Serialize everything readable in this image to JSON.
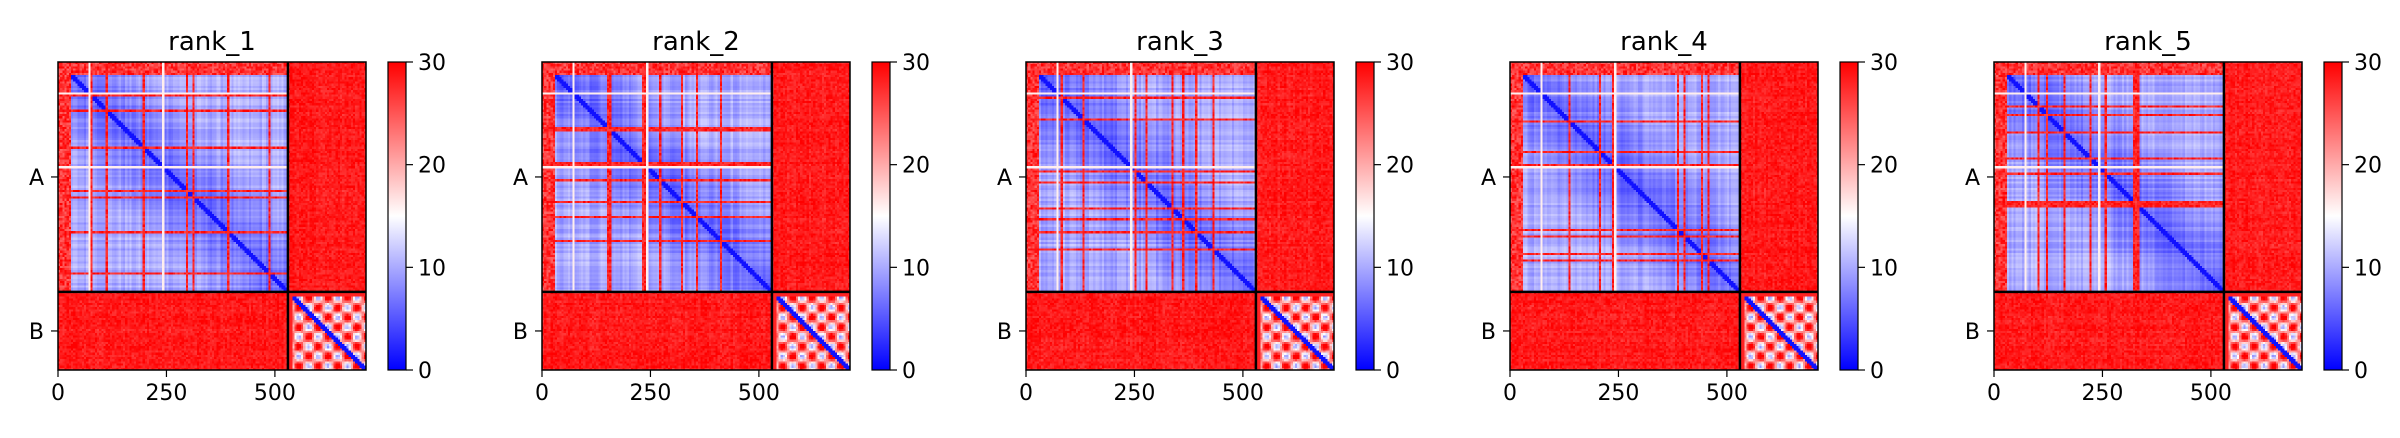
{
  "chart_data": [
    {
      "type": "heatmap",
      "title": "rank_1",
      "row_labels": [
        "A",
        "B"
      ],
      "x_ticks": [
        0,
        250,
        500
      ],
      "chain_split": 530,
      "length": 710,
      "colorbar": {
        "min": 0,
        "max": 30,
        "ticks": [
          0,
          10,
          20,
          30
        ]
      },
      "colormap": [
        "#0000ff",
        "#ffffff",
        "#ff0000"
      ]
    },
    {
      "type": "heatmap",
      "title": "rank_2",
      "row_labels": [
        "A",
        "B"
      ],
      "x_ticks": [
        0,
        250,
        500
      ],
      "chain_split": 530,
      "length": 710,
      "colorbar": {
        "min": 0,
        "max": 30,
        "ticks": [
          0,
          10,
          20,
          30
        ]
      },
      "colormap": [
        "#0000ff",
        "#ffffff",
        "#ff0000"
      ]
    },
    {
      "type": "heatmap",
      "title": "rank_3",
      "row_labels": [
        "A",
        "B"
      ],
      "x_ticks": [
        0,
        250,
        500
      ],
      "chain_split": 530,
      "length": 710,
      "colorbar": {
        "min": 0,
        "max": 30,
        "ticks": [
          0,
          10,
          20,
          30
        ]
      },
      "colormap": [
        "#0000ff",
        "#ffffff",
        "#ff0000"
      ]
    },
    {
      "type": "heatmap",
      "title": "rank_4",
      "row_labels": [
        "A",
        "B"
      ],
      "x_ticks": [
        0,
        250,
        500
      ],
      "chain_split": 530,
      "length": 710,
      "colorbar": {
        "min": 0,
        "max": 30,
        "ticks": [
          0,
          10,
          20,
          30
        ]
      },
      "colormap": [
        "#0000ff",
        "#ffffff",
        "#ff0000"
      ]
    },
    {
      "type": "heatmap",
      "title": "rank_5",
      "row_labels": [
        "A",
        "B"
      ],
      "x_ticks": [
        0,
        250,
        500
      ],
      "chain_split": 530,
      "length": 710,
      "colorbar": {
        "min": 0,
        "max": 30,
        "ticks": [
          0,
          10,
          20,
          30
        ]
      },
      "colormap": [
        "#0000ff",
        "#ffffff",
        "#ff0000"
      ]
    }
  ]
}
